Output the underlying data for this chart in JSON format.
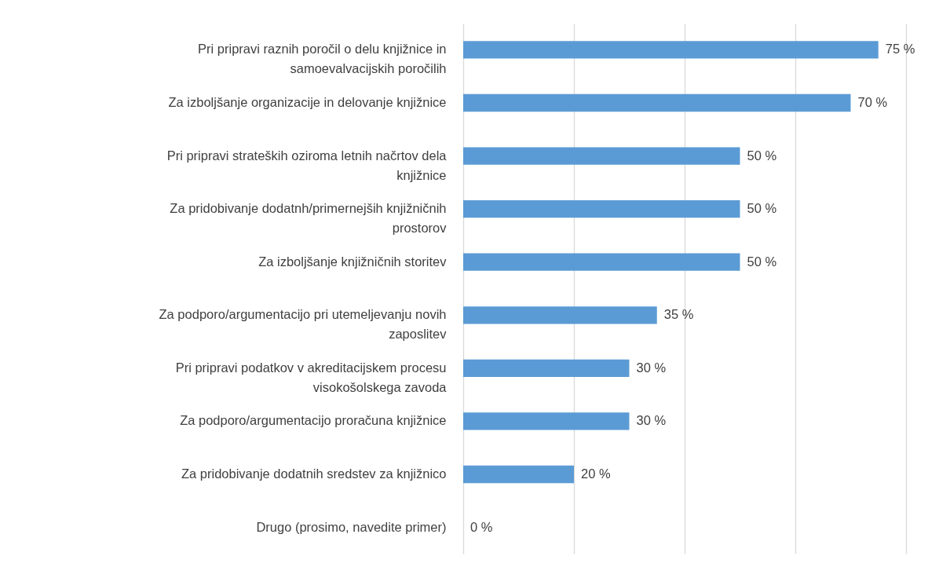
{
  "chart_data": {
    "type": "bar",
    "orientation": "horizontal",
    "categories": [
      "Pri pripravi raznih poročil o delu knjižnice in samoevalvacijskih poročilih",
      "Za izboljšanje organizacije in delovanje knjižnice",
      "Pri pripravi strateških oziroma letnih načrtov dela knjižnice",
      "Za pridobivanje dodatnh/primernejših knjižničnih prostorov",
      "Za izboljšanje knjižničnih storitev",
      "Za podporo/argumentacijo pri utemeljevanju novih zaposlitev",
      "Pri pripravi podatkov v akreditacijskem procesu visokošolskega zavoda",
      "Za podporo/argumentacijo proračuna knjižnice",
      "Za pridobivanje dodatnih sredstev za knjižnico",
      "Drugo (prosimo, navedite primer)"
    ],
    "values": [
      75,
      70,
      50,
      50,
      50,
      35,
      30,
      30,
      20,
      0
    ],
    "value_labels": [
      "75 %",
      "70 %",
      "50 %",
      "50 %",
      "50 %",
      "35 %",
      "30 %",
      "30 %",
      "20 %",
      "0 %"
    ],
    "color": "#5b9bd5",
    "xlim": [
      0,
      80
    ],
    "xticks": [
      {
        "value": 0,
        "label": null
      },
      {
        "value": 20,
        "label": null
      },
      {
        "value": 40,
        "label": null
      },
      {
        "value": 60,
        "label": null
      },
      {
        "value": 80,
        "label": null
      }
    ],
    "tick_labels": "y",
    "grid": "x"
  }
}
